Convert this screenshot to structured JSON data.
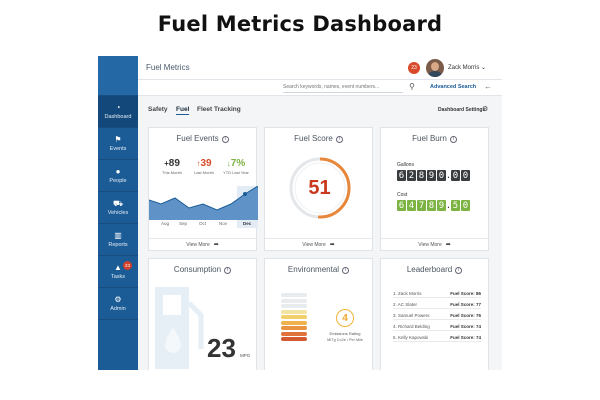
{
  "page_title": "Fuel Metrics Dashboard",
  "header": {
    "app_title": "Fuel Metrics",
    "notification_count": "23",
    "user_name": "Zack Morris ⌄"
  },
  "search": {
    "placeholder": "Search keywords, names, event numbers...",
    "advanced_label": "Advanced Search"
  },
  "sidebar": {
    "items": [
      {
        "label": "Dashboard",
        "icon": "dashboard-icon",
        "glyph": "◔"
      },
      {
        "label": "Events",
        "icon": "flag-icon",
        "glyph": "⚑"
      },
      {
        "label": "People",
        "icon": "person-icon",
        "glyph": "●"
      },
      {
        "label": "Vehicles",
        "icon": "truck-icon",
        "glyph": "⛟"
      },
      {
        "label": "Reports",
        "icon": "bar-chart-icon",
        "glyph": "▥"
      },
      {
        "label": "Tasks",
        "icon": "bell-icon",
        "glyph": "▲",
        "badge": "23"
      },
      {
        "label": "Admin",
        "icon": "gear-icon",
        "glyph": "⚙"
      }
    ]
  },
  "tabs": [
    "Safety",
    "Fuel",
    "Fleet Tracking"
  ],
  "dashboard_settings_label": "Dashboard Settings",
  "cards": {
    "fuel_events": {
      "title": "Fuel Events",
      "stats": [
        {
          "arrow": "+",
          "value": "89",
          "label": "This Month",
          "color": "#333333"
        },
        {
          "arrow": "↑",
          "value": "39",
          "label": "Last Month",
          "color": "#d84b2a"
        },
        {
          "arrow": "↓",
          "value": "7%",
          "label": "YTD Last Year",
          "color": "#7cb342"
        }
      ],
      "months": [
        "Aug",
        "Sep",
        "Oct",
        "Nov",
        "Dec"
      ],
      "footer": "View More"
    },
    "fuel_score": {
      "title": "Fuel Score",
      "score": "51",
      "fraction": 0.51,
      "footer": "View More"
    },
    "fuel_burn": {
      "title": "Fuel Burn",
      "gallons_label": "Gallons",
      "gallons_digits": [
        "6",
        "2",
        "8",
        "9",
        "0",
        ".",
        "0",
        "0"
      ],
      "cost_label": "Cost",
      "cost_digits": [
        "6",
        "4",
        "7",
        "8",
        "9",
        ".",
        "5",
        "0"
      ],
      "footer": "View More"
    },
    "consumption": {
      "title": "Consumption",
      "value": "23",
      "unit": "MPG"
    },
    "environmental": {
      "title": "Environmental",
      "rating": "4",
      "rating_label": "Emissions Rating",
      "sub_label": "MITg Co2e / Per Mile"
    },
    "leaderboard": {
      "title": "Leaderboard",
      "rows": [
        {
          "name": "1. Zack Morris",
          "score": "Fuel Score: 86"
        },
        {
          "name": "2. AC Slater",
          "score": "Fuel Score: 77"
        },
        {
          "name": "3. Samuel Powers",
          "score": "Fuel Score: 76"
        },
        {
          "name": "4. Richard Belding",
          "score": "Fuel Score: 74"
        },
        {
          "name": "5. Kelly Kapowski",
          "score": "Fuel Score: 74"
        }
      ]
    }
  },
  "colors": {
    "brand": "#1b5c97",
    "accent_red": "#d84b2a",
    "accent_green": "#7cb342",
    "score_orange": "#e8873a"
  }
}
